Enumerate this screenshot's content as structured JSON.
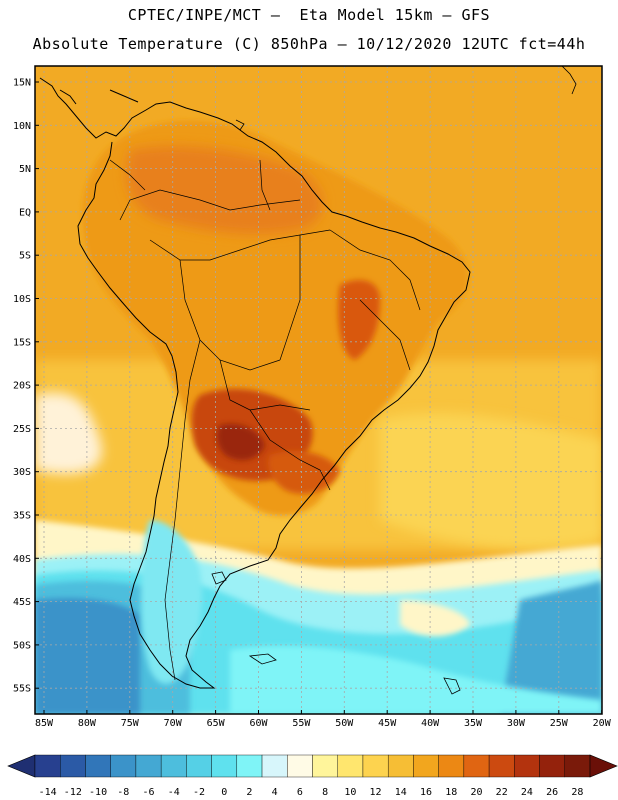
{
  "header": {
    "line1": "CPTEC/INPE/MCT –  Eta Model 15km – GFS",
    "line2": "Absolute Temperature (C) 850hPa – 10/12/2020 12UTC fct=44h"
  },
  "axes": {
    "lat_labels": [
      "15N",
      "10N",
      "5N",
      "EQ",
      "5S",
      "10S",
      "15S",
      "20S",
      "25S",
      "30S",
      "35S",
      "40S",
      "45S",
      "50S",
      "55S"
    ],
    "lon_labels": [
      "85W",
      "80W",
      "75W",
      "70W",
      "65W",
      "60W",
      "55W",
      "50W",
      "45W",
      "40W",
      "35W",
      "30W",
      "25W",
      "20W"
    ]
  },
  "colorbar": {
    "labels": [
      "-14",
      "-12",
      "-10",
      "-8",
      "-6",
      "-4",
      "-2",
      "0",
      "2",
      "4",
      "6",
      "8",
      "10",
      "12",
      "14",
      "16",
      "18",
      "20",
      "22",
      "24",
      "26",
      "28"
    ],
    "colors": [
      "#27408f",
      "#2b5aa6",
      "#3176b9",
      "#3b93c9",
      "#44a8d3",
      "#4dbedd",
      "#55d0e6",
      "#5fe1ee",
      "#7ff4f7",
      "#d7f6fb",
      "#fffbe6",
      "#fff59b",
      "#ffe66e",
      "#fdd34f",
      "#f6be35",
      "#f2a61e",
      "#ec8814",
      "#e06512",
      "#cc4a10",
      "#b3330e",
      "#94220c",
      "#7a1a0a"
    ],
    "under_color": "#1f2f72",
    "over_color": "#6a1008"
  }
}
